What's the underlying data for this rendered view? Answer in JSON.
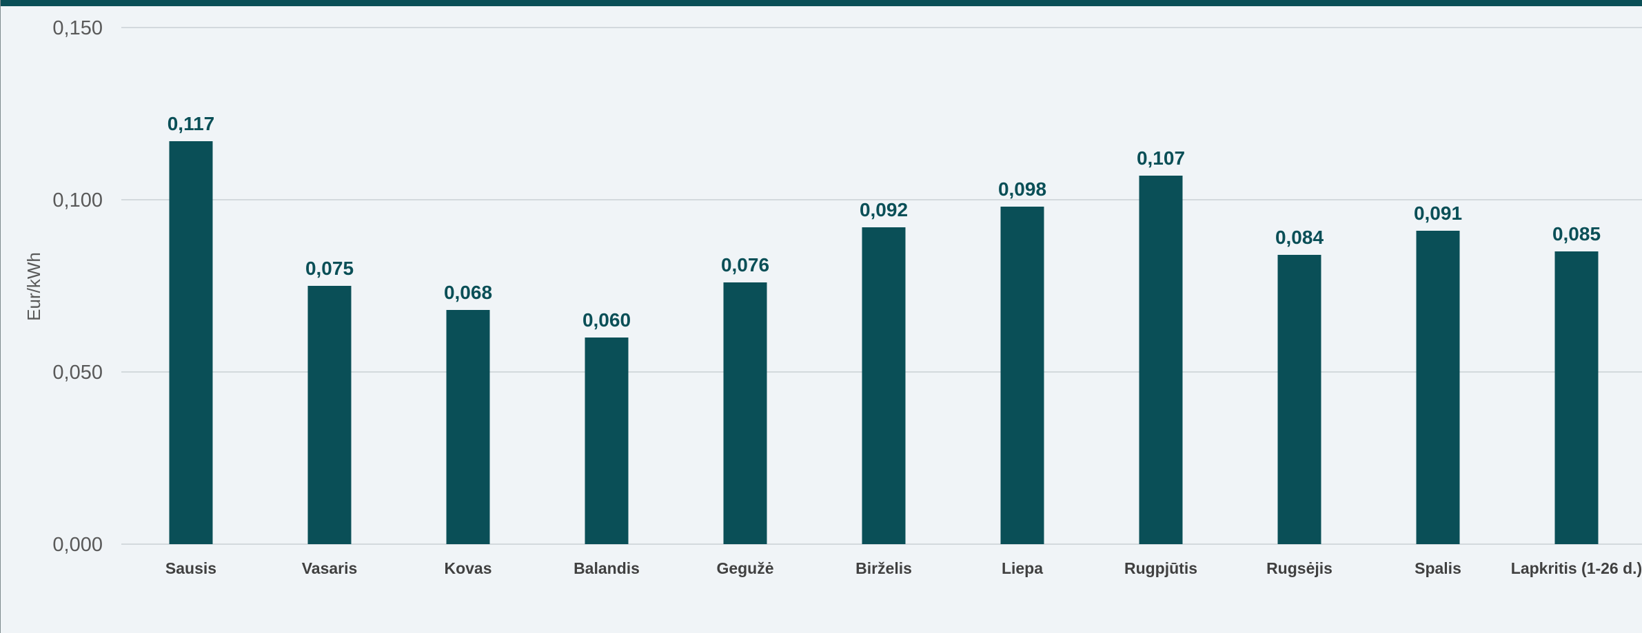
{
  "colors": {
    "bar": "#0a4f57",
    "data_label": "#0a4f57",
    "grid": "#d3d9dd",
    "top_bar": "#0a4f57",
    "background": "#f0f4f7"
  },
  "chart_data": {
    "type": "bar",
    "ylabel": "Eur/kWh",
    "ylim": [
      0,
      0.15
    ],
    "y_ticks": [
      0,
      0.05,
      0.1,
      0.15
    ],
    "y_tick_labels": [
      "0,000",
      "0,050",
      "0,100",
      "0,150"
    ],
    "grid": true,
    "categories": [
      "Sausis",
      "Vasaris",
      "Kovas",
      "Balandis",
      "Gegužė",
      "Birželis",
      "Liepa",
      "Rugpjūtis",
      "Rugsėjis",
      "Spalis",
      "Lapkritis (1-26 d.)"
    ],
    "values": [
      0.117,
      0.075,
      0.068,
      0.06,
      0.076,
      0.092,
      0.098,
      0.107,
      0.084,
      0.091,
      0.085
    ],
    "data_labels": [
      "0,117",
      "0,075",
      "0,068",
      "0,060",
      "0,076",
      "0,092",
      "0,098",
      "0,107",
      "0,084",
      "0,091",
      "0,085"
    ]
  }
}
